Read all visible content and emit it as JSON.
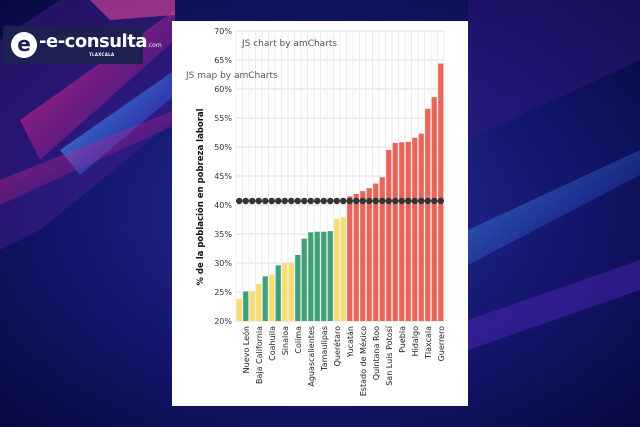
{
  "logo": {
    "name": "e-consulta",
    "domain": ".com",
    "region": "TLAXCALA"
  },
  "watermarks": {
    "chart": "JS chart by amCharts",
    "map": "JS map by amCharts"
  },
  "chart_data": {
    "type": "bar",
    "ylabel": "% de la población en pobreza laboral",
    "ylim": [
      20,
      70
    ],
    "yticks": [
      20,
      25,
      30,
      35,
      40,
      45,
      50,
      55,
      60,
      65,
      70
    ],
    "ytick_suffix": "%",
    "grid": true,
    "reference_line": 40.7,
    "categories": [
      "",
      "Nuevo León",
      "",
      "Baja California",
      "",
      "Coahuila",
      "",
      "Sinaloa",
      "",
      "Colima",
      "",
      "Aguascalientes",
      "",
      "Tamaulipas",
      "",
      "Querétaro",
      "",
      "Yucatán",
      "",
      "Estado de México",
      "",
      "Quintana Roo",
      "",
      "San Luis Potosí",
      "",
      "Puebla",
      "",
      "Hidalgo",
      "",
      "Tlaxcala",
      "",
      "Guerrero"
    ],
    "values": [
      23.8,
      25.1,
      25.2,
      26.4,
      27.7,
      28.0,
      29.6,
      30.0,
      30.0,
      31.4,
      34.2,
      35.3,
      35.4,
      35.4,
      35.5,
      37.6,
      37.9,
      41.5,
      41.9,
      42.4,
      42.9,
      43.7,
      44.8,
      49.5,
      50.7,
      50.8,
      50.9,
      51.6,
      52.3,
      56.6,
      58.6,
      64.4
    ],
    "bar_colors": [
      "#f7dc6f",
      "#3fa277",
      "#f7dc6f",
      "#f7dc6f",
      "#3fa277",
      "#f7dc6f",
      "#3fa277",
      "#f7dc6f",
      "#f7dc6f",
      "#3fa277",
      "#3fa277",
      "#3fa277",
      "#3fa277",
      "#3fa277",
      "#3fa277",
      "#f7dc6f",
      "#f7dc6f",
      "#e8655a",
      "#e8655a",
      "#e8655a",
      "#e8655a",
      "#e8655a",
      "#e8655a",
      "#e8655a",
      "#e8655a",
      "#e8655a",
      "#e8655a",
      "#e8655a",
      "#e8655a",
      "#e8655a",
      "#e8655a",
      "#e8655a"
    ]
  }
}
